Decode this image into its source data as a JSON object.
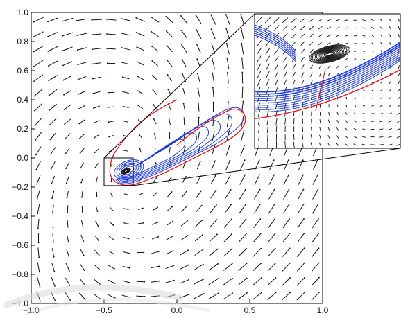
{
  "chart_data": {
    "type": "vector-field",
    "title": "",
    "xlabel": "",
    "ylabel": "",
    "xlim": [
      -1.0,
      1.0
    ],
    "ylim": [
      -1.0,
      1.0
    ],
    "xticks": [
      -1.0,
      -0.5,
      0.0,
      0.5,
      1.0
    ],
    "yticks": [
      -1.0,
      -0.8,
      -0.6,
      -0.4,
      -0.2,
      0.0,
      0.2,
      0.4,
      0.6,
      0.8,
      1.0
    ],
    "xtick_labels": [
      "−1.0",
      "−0.5",
      "0.0",
      "0.5",
      "1.0"
    ],
    "ytick_labels": [
      "−1.0",
      "−0.8",
      "−0.6",
      "−0.4",
      "−0.2",
      "0.0",
      "0.2",
      "0.4",
      "0.6",
      "0.8",
      "1.0"
    ],
    "grid": false,
    "legend": "none",
    "fixed_point": [
      -0.35,
      -0.09
    ],
    "zoom_window": {
      "x": [
        -0.5,
        -0.3
      ],
      "y": [
        -0.19,
        0.0
      ]
    },
    "series": [
      {
        "color": "#e8141b",
        "kind": "trajectory",
        "x": [
          0.0,
          -0.08,
          -0.18,
          -0.28,
          -0.36,
          -0.42,
          -0.45,
          -0.46,
          -0.46,
          -0.44,
          -0.4,
          -0.34,
          -0.28,
          -0.2,
          -0.1,
          0.0,
          0.1,
          0.2,
          0.3,
          0.38,
          0.44,
          0.47,
          0.47,
          0.44,
          0.38,
          0.3,
          0.2,
          0.1,
          0.0
        ],
        "y": [
          0.4,
          0.36,
          0.3,
          0.22,
          0.13,
          0.05,
          -0.01,
          -0.07,
          -0.11,
          -0.15,
          -0.18,
          -0.19,
          -0.18,
          -0.15,
          -0.11,
          -0.06,
          -0.01,
          0.04,
          0.09,
          0.14,
          0.19,
          0.24,
          0.29,
          0.33,
          0.34,
          0.3,
          0.24,
          0.17,
          0.09
        ]
      },
      {
        "color": "#1f3ce0",
        "kind": "trajectory-bundle",
        "x": [
          -0.42,
          -0.4,
          -0.36,
          -0.3,
          -0.22,
          -0.12,
          -0.02,
          0.08,
          0.18,
          0.28,
          0.36,
          0.42,
          0.46,
          0.46,
          0.42,
          0.35,
          0.26,
          0.16,
          0.06,
          -0.04,
          -0.14,
          -0.22
        ],
        "y": [
          -0.15,
          -0.17,
          -0.18,
          -0.17,
          -0.14,
          -0.1,
          -0.05,
          0.0,
          0.05,
          0.1,
          0.16,
          0.21,
          0.26,
          0.32,
          0.35,
          0.34,
          0.29,
          0.23,
          0.16,
          0.09,
          0.03,
          -0.02
        ]
      },
      {
        "color": "#111111",
        "kind": "spiral-at-fixed-point",
        "x": [
          -0.35
        ],
        "y": [
          -0.09
        ]
      }
    ]
  }
}
